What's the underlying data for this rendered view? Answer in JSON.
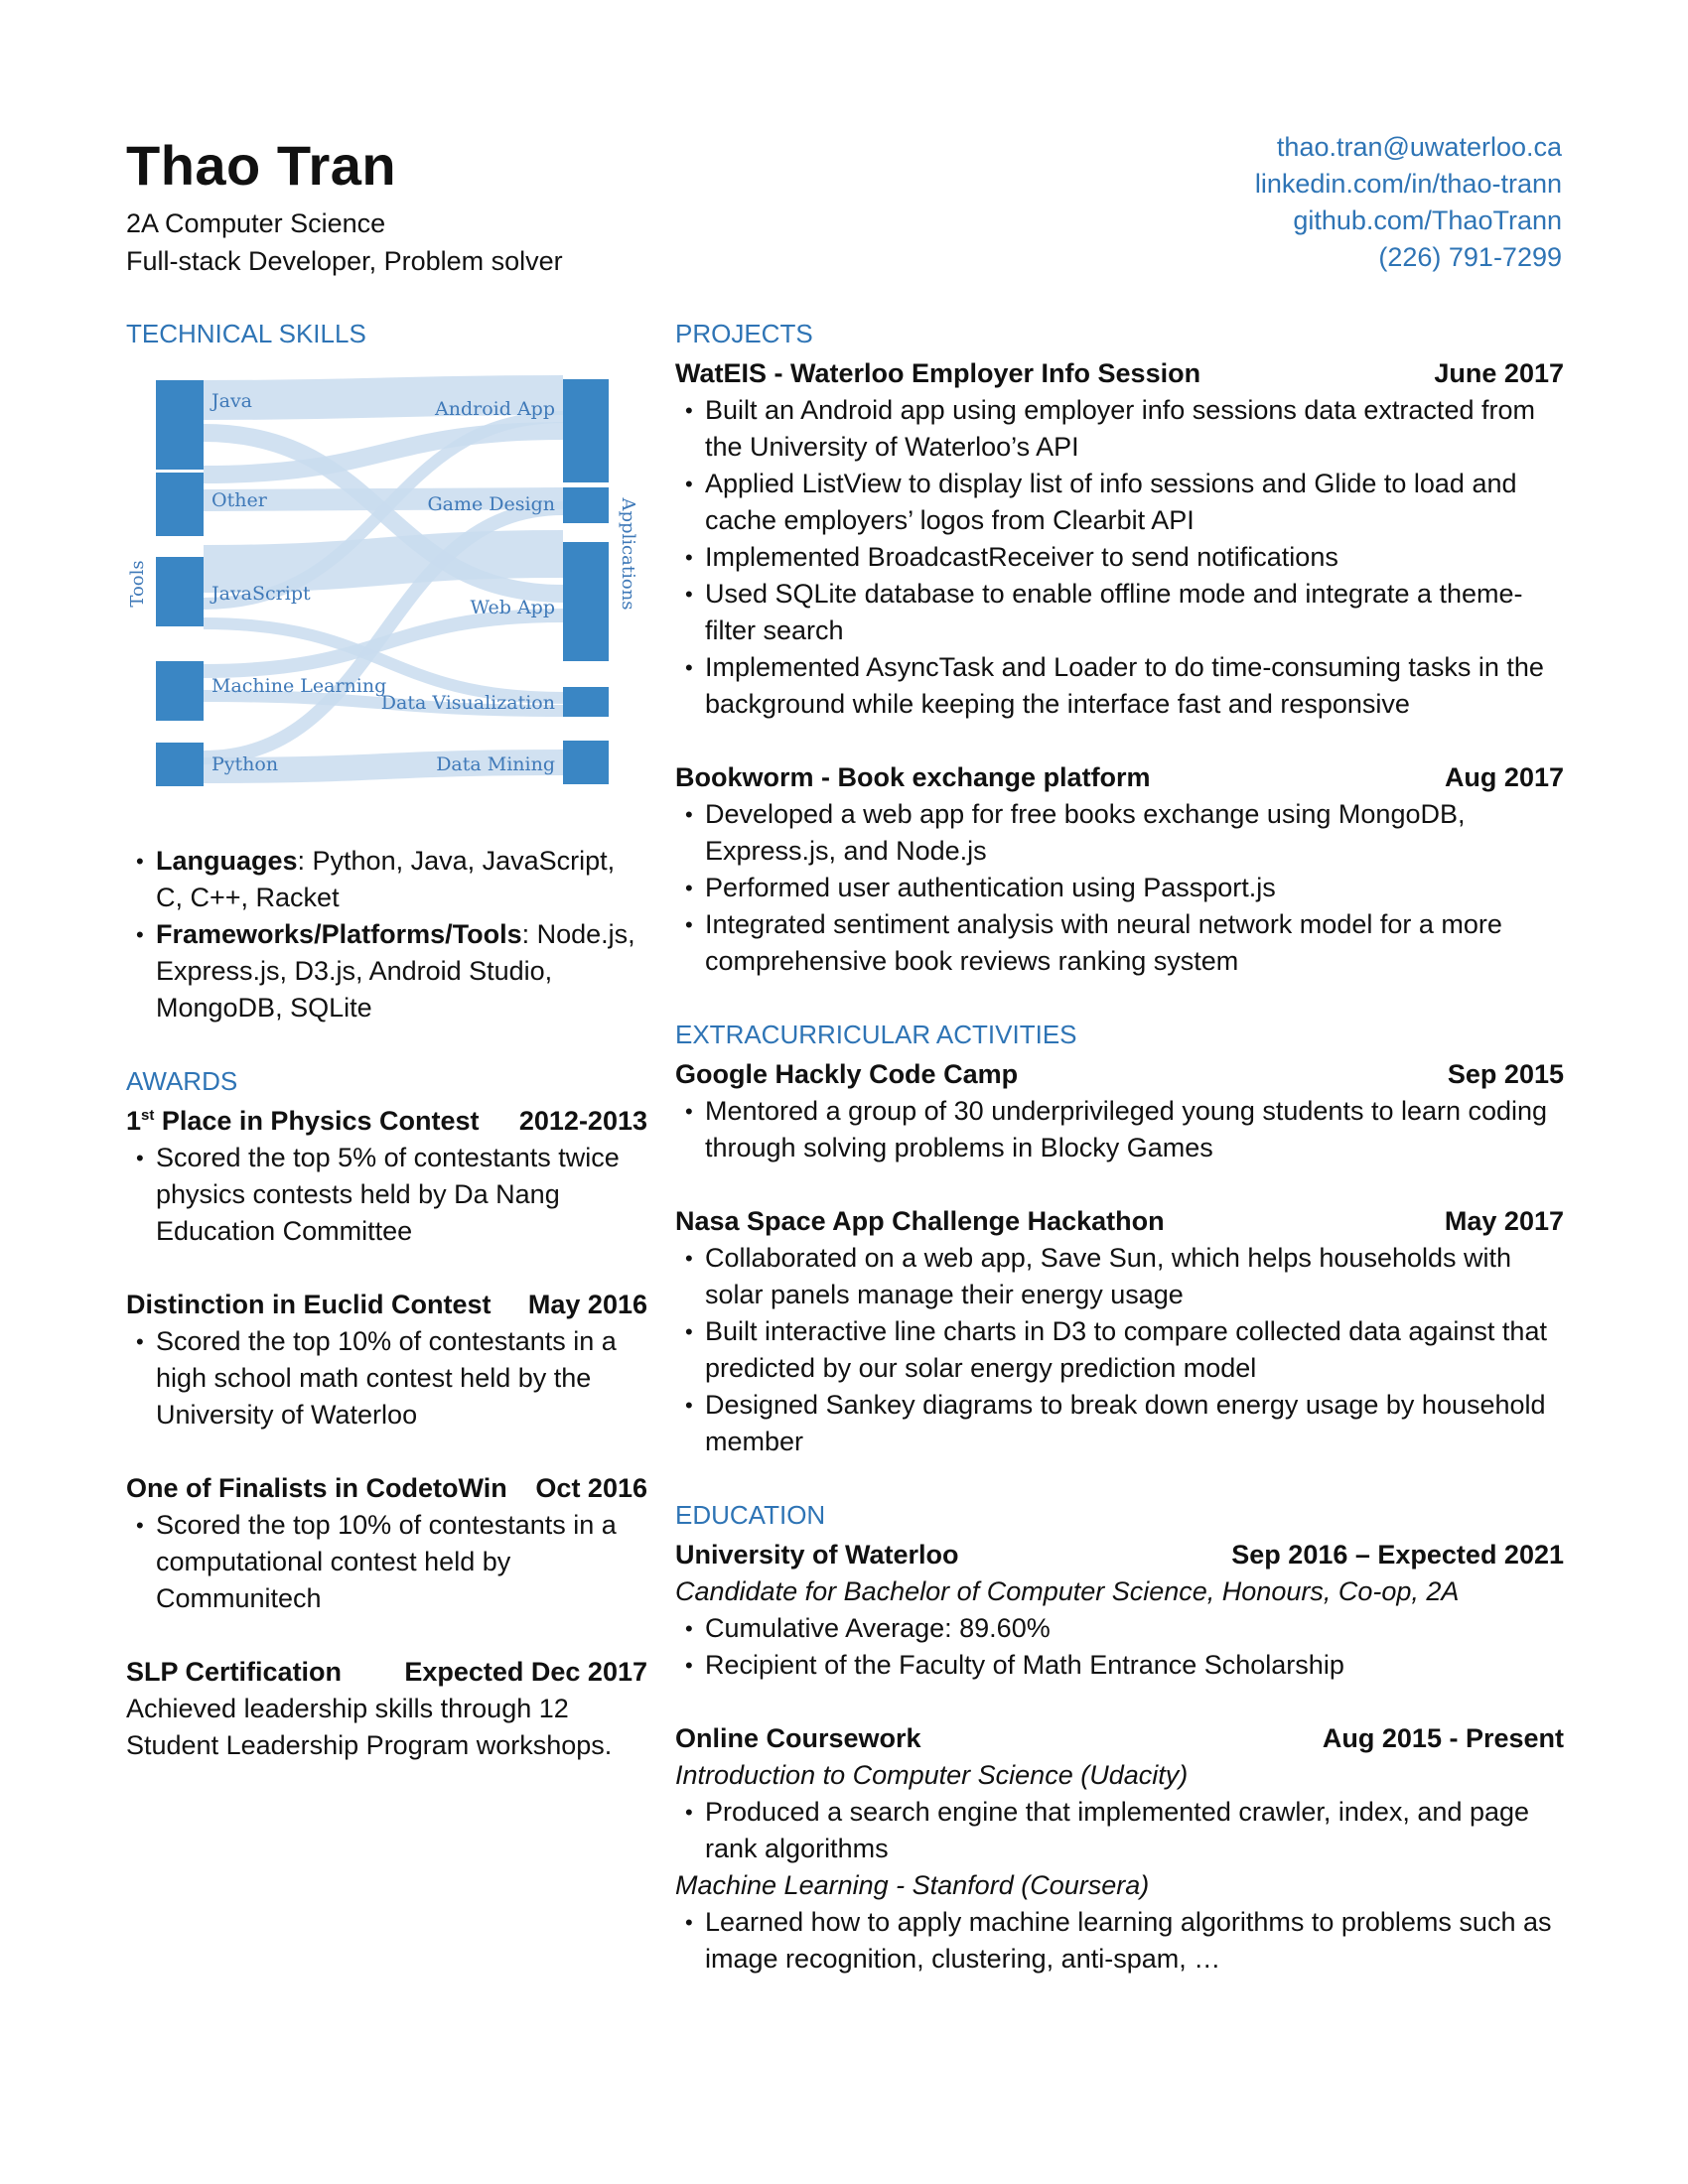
{
  "header": {
    "name": "Thao Tran",
    "line1": "2A Computer Science",
    "line2": "Full-stack Developer, Problem solver",
    "email": "thao.tran@uwaterloo.ca",
    "linkedin": "linkedin.com/in/thao-trann",
    "github": "github.com/ThaoTrann",
    "phone": "(226) 791-7299"
  },
  "colors": {
    "accent": "#2e74b5",
    "sankey_node": "#3a86c4",
    "sankey_link": "#c9dcee"
  },
  "skills": {
    "title": "TECHNICAL SKILLS",
    "languages_label": "Languages",
    "languages": ": Python, Java, JavaScript, C, C++, Racket",
    "frameworks_label": "Frameworks/Platforms/Tools",
    "frameworks": ": Node.js, Express.js, D3.js, Android Studio, MongoDB, SQLite"
  },
  "sankey": {
    "left_axis": "Tools",
    "right_axis": "Applications",
    "sources": [
      "Java",
      "Other",
      "JavaScript",
      "Machine Learning",
      "Python"
    ],
    "targets": [
      "Android App",
      "Game Design",
      "Web App",
      "Data Visualization",
      "Data Mining"
    ]
  },
  "awards": {
    "title": "AWARDS",
    "items": [
      {
        "title_sup": "st",
        "title_rest": " Place in Physics Contest",
        "title_prefix": "1",
        "date": "2012-2013",
        "bullets": [
          "Scored the top 5% of contestants twice physics contests held by Da Nang Education Committee"
        ]
      },
      {
        "title": "Distinction in Euclid Contest",
        "date": "May 2016",
        "bullets": [
          "Scored the top 10% of contestants in a high school math contest held by the University of Waterloo"
        ]
      },
      {
        "title": "One of Finalists in CodetoWin",
        "date": "Oct 2016",
        "bullets": [
          "Scored the top 10% of contestants in a computational contest held by Communitech"
        ]
      },
      {
        "title": "SLP Certification",
        "date": "Expected Dec 2017",
        "text": "Achieved leadership skills through 12 Student Leadership Program workshops."
      }
    ]
  },
  "projects": {
    "title": "PROJECTS",
    "items": [
      {
        "title": "WatEIS - Waterloo Employer Info Session",
        "date": "June 2017",
        "bullets": [
          "Built an Android app using employer info sessions data extracted from the University of Waterloo’s API",
          "Applied ListView to display list of info sessions and Glide to load and cache employers’ logos from Clearbit API",
          "Implemented BroadcastReceiver to send notifications",
          "Used SQLite database to enable offline mode and integrate a theme-filter search",
          "Implemented AsyncTask and Loader to do time-consuming tasks in the background while keeping the interface fast and responsive"
        ]
      },
      {
        "title": "Bookworm - Book exchange platform",
        "date": "Aug 2017",
        "bullets": [
          "Developed a web app for free books exchange using MongoDB, Express.js, and Node.js",
          "Performed user authentication using Passport.js",
          "Integrated sentiment analysis with neural network model for a more comprehensive book reviews ranking system"
        ]
      }
    ]
  },
  "extracurricular": {
    "title": "EXTRACURRICULAR ACTIVITIES",
    "items": [
      {
        "title": "Google Hackly Code Camp",
        "date": "Sep 2015",
        "bullets": [
          "Mentored a group of 30 underprivileged young students to learn coding through solving problems in Blocky Games"
        ]
      },
      {
        "title": "Nasa Space App Challenge Hackathon",
        "date": "May 2017",
        "bullets": [
          "Collaborated on a web app, Save Sun, which helps households with solar panels manage their energy usage",
          "Built interactive line charts in D3 to compare collected data against that predicted by our solar energy prediction model",
          "Designed Sankey diagrams to break down energy usage by household member"
        ]
      }
    ]
  },
  "education": {
    "title": "EDUCATION",
    "uw": {
      "title": "University of Waterloo",
      "date": "Sep 2016 – Expected 2021",
      "sub": "Candidate for Bachelor of Computer Science, Honours, Co-op, 2A",
      "bullets": [
        "Cumulative Average: 89.60%",
        "Recipient of the Faculty of Math Entrance Scholarship"
      ]
    },
    "online": {
      "title": "Online Coursework",
      "date": "Aug 2015 - Present",
      "course1": "Introduction to Computer Science (Udacity)",
      "course1_bullets": [
        "Produced a search engine that implemented crawler, index, and page rank algorithms"
      ],
      "course2": "Machine Learning - Stanford (Coursera)",
      "course2_bullets": [
        "Learned how to apply machine learning algorithms to problems such as image recognition, clustering, anti-spam, …"
      ]
    }
  }
}
